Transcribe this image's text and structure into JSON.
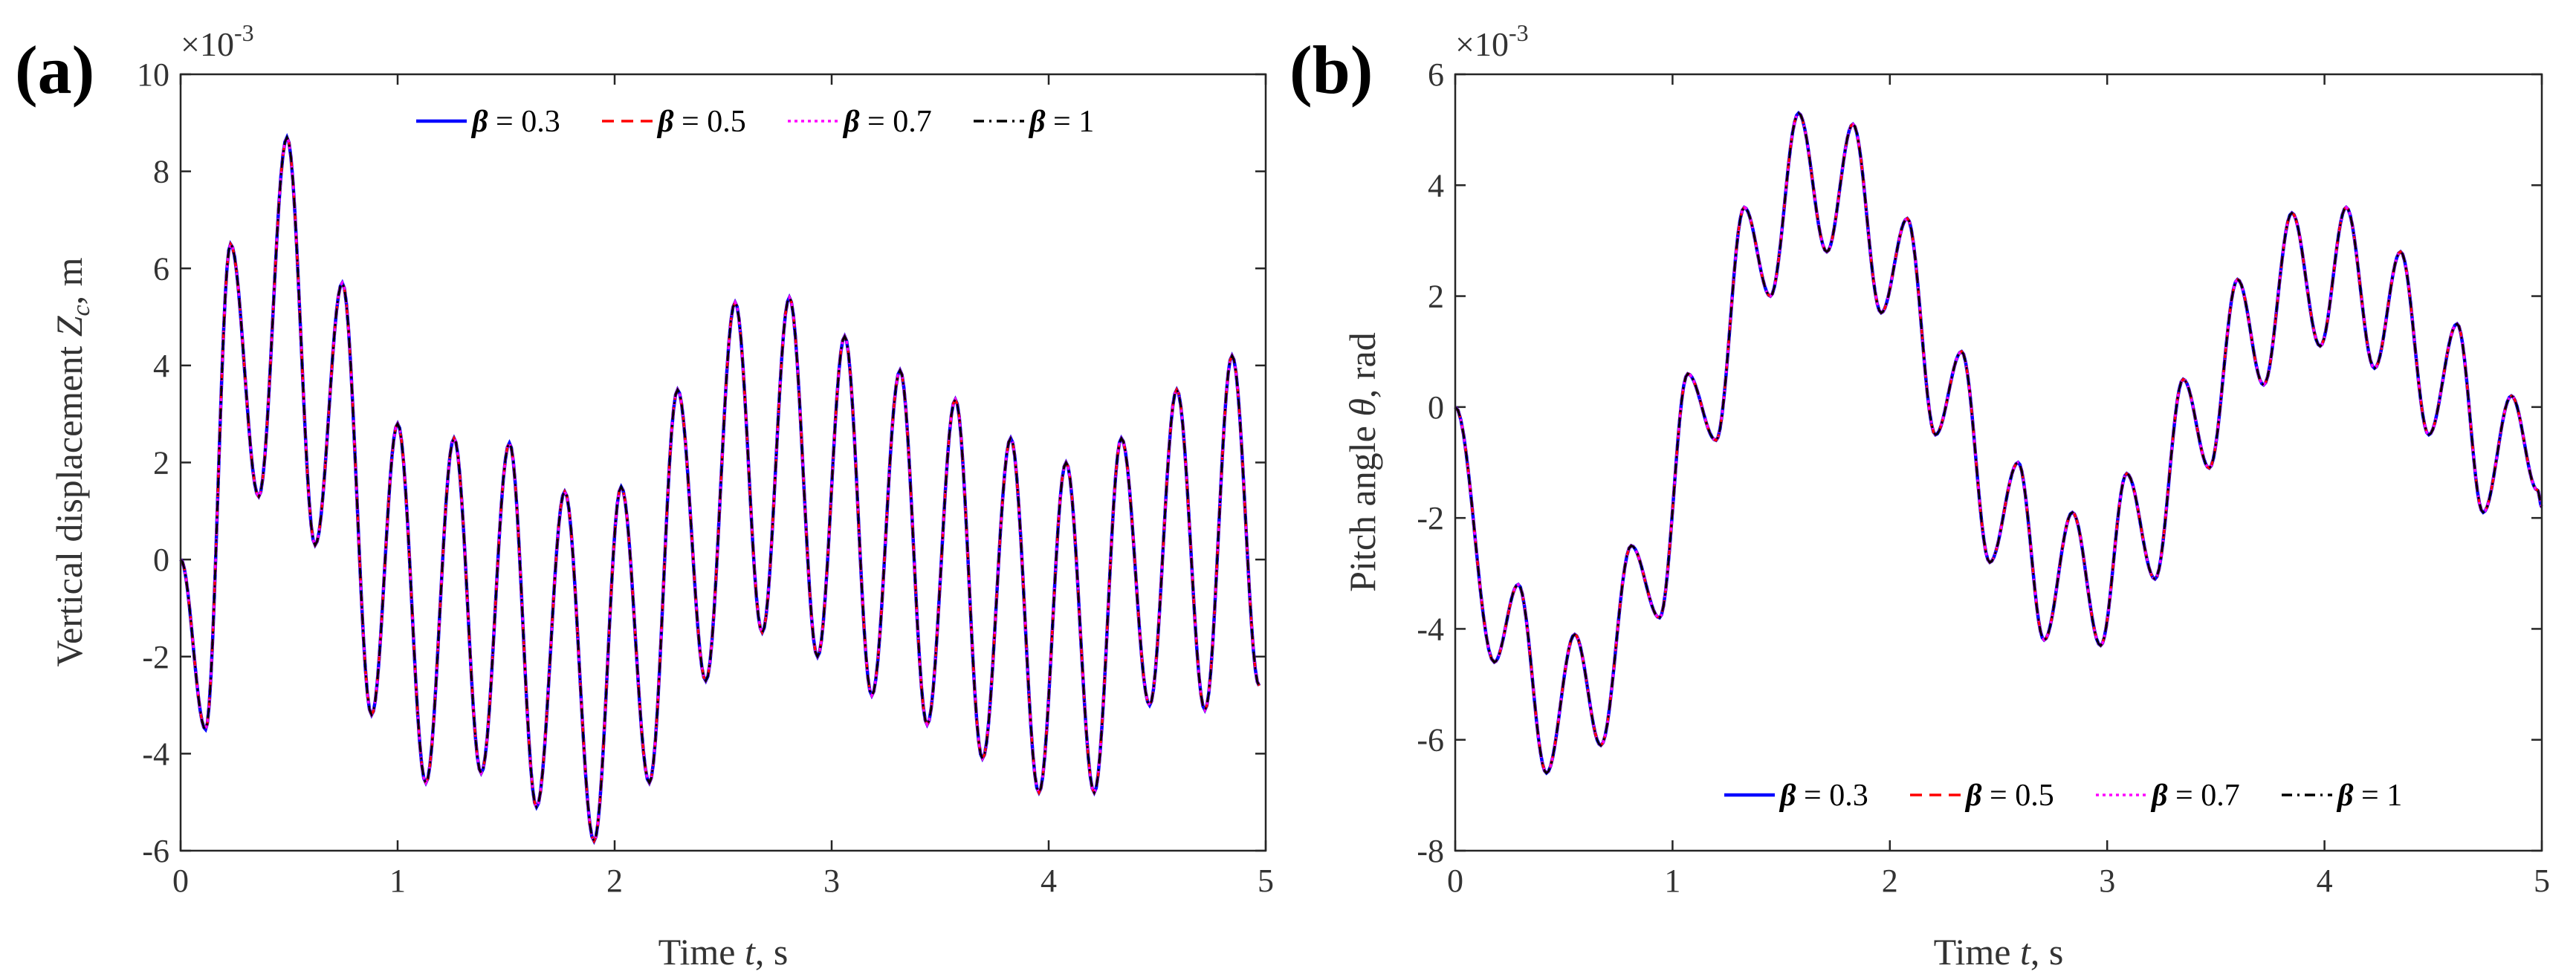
{
  "chart_data": [
    {
      "type": "line",
      "panel": "(a)",
      "xlabel_main": "Time ",
      "xlabel_var": "t",
      "xlabel_unit": ", s",
      "ylabel_main": "Vertical displacement ",
      "ylabel_var": "Z",
      "ylabel_sub": "c",
      "ylabel_unit": ", m",
      "exponent_base": "×10",
      "exponent_power": "-3",
      "xlim": [
        0,
        5
      ],
      "ylim": [
        -6,
        10
      ],
      "xticks": [
        0,
        1,
        2,
        3,
        4,
        5
      ],
      "yticks": [
        -6,
        -4,
        -2,
        0,
        2,
        4,
        6,
        8,
        10
      ],
      "legend_position": "top",
      "series": [
        {
          "name": "β = 0.3",
          "symbol": "β",
          "value_text": " = 0.3",
          "color": "#0000ff",
          "style": "solid"
        },
        {
          "name": "β = 0.5",
          "symbol": "β",
          "value_text": " = 0.5",
          "color": "#ff0000",
          "style": "dashed"
        },
        {
          "name": "β = 0.7",
          "symbol": "β",
          "value_text": " = 0.7",
          "color": "#ff00ff",
          "style": "dotted"
        },
        {
          "name": "β = 1",
          "symbol": "β",
          "value_text": " = 1",
          "color": "#000000",
          "style": "dashdot"
        }
      ],
      "x": [
        0,
        0.115,
        0.23,
        0.36,
        0.49,
        0.62,
        0.745,
        0.88,
        1.0,
        1.13,
        1.26,
        1.385,
        1.515,
        1.64,
        1.77,
        1.905,
        2.03,
        2.16,
        2.29,
        2.42,
        2.555,
        2.68,
        2.805,
        2.935,
        3.06,
        3.185,
        3.315,
        3.44,
        3.57,
        3.695,
        3.825,
        3.955,
        4.08,
        4.21,
        4.335,
        4.465,
        4.59,
        4.72,
        4.845,
        4.97
      ],
      "y": [
        0,
        -3.5,
        6.5,
        1.3,
        8.7,
        0.3,
        5.7,
        -3.2,
        2.8,
        -4.6,
        2.5,
        -4.4,
        2.4,
        -5.1,
        1.4,
        -5.8,
        1.5,
        -4.6,
        3.5,
        -2.5,
        5.3,
        -1.5,
        5.4,
        -2.0,
        4.6,
        -2.8,
        3.9,
        -3.4,
        3.3,
        -4.1,
        2.5,
        -4.8,
        2.0,
        -4.8,
        2.5,
        -3.0,
        3.5,
        -3.1,
        4.2,
        -2.6
      ]
    },
    {
      "type": "line",
      "panel": "(b)",
      "xlabel_main": "Time ",
      "xlabel_var": "t",
      "xlabel_unit": ", s",
      "ylabel_main": "Pitch angle ",
      "ylabel_var": "θ",
      "ylabel_unit": ", rad",
      "exponent_base": "×10",
      "exponent_power": "-3",
      "xlim": [
        0,
        5
      ],
      "ylim": [
        -8,
        6
      ],
      "xticks": [
        0,
        1,
        2,
        3,
        4,
        5
      ],
      "yticks": [
        -8,
        -6,
        -4,
        -2,
        0,
        2,
        4,
        6
      ],
      "legend_position": "bottom-right",
      "series": [
        {
          "name": "β = 0.3",
          "symbol": "β",
          "value_text": " = 0.3",
          "color": "#0000ff",
          "style": "solid"
        },
        {
          "name": "β = 0.5",
          "symbol": "β",
          "value_text": " = 0.5",
          "color": "#ff0000",
          "style": "dashed"
        },
        {
          "name": "β = 0.7",
          "symbol": "β",
          "value_text": " = 0.7",
          "color": "#ff00ff",
          "style": "dotted"
        },
        {
          "name": "β = 1",
          "symbol": "β",
          "value_text": " = 1",
          "color": "#000000",
          "style": "dashdot"
        }
      ],
      "x": [
        0,
        0.18,
        0.29,
        0.42,
        0.55,
        0.67,
        0.81,
        0.94,
        1.07,
        1.2,
        1.33,
        1.45,
        1.58,
        1.71,
        1.83,
        1.96,
        2.08,
        2.21,
        2.33,
        2.46,
        2.59,
        2.71,
        2.84,
        2.97,
        3.09,
        3.22,
        3.35,
        3.47,
        3.6,
        3.72,
        3.85,
        3.98,
        4.1,
        4.23,
        4.35,
        4.48,
        4.61,
        4.73,
        4.86,
        4.98,
        5.0
      ],
      "y": [
        0,
        -4.6,
        -3.2,
        -6.6,
        -4.1,
        -6.1,
        -2.5,
        -3.8,
        0.6,
        -0.6,
        3.6,
        2.0,
        5.3,
        2.8,
        5.1,
        1.7,
        3.4,
        -0.5,
        1.0,
        -2.8,
        -1.0,
        -4.2,
        -1.9,
        -4.3,
        -1.2,
        -3.1,
        0.5,
        -1.1,
        2.3,
        0.4,
        3.5,
        1.1,
        3.6,
        0.7,
        2.8,
        -0.5,
        1.5,
        -1.9,
        0.2,
        -1.5,
        -1.8
      ]
    }
  ]
}
